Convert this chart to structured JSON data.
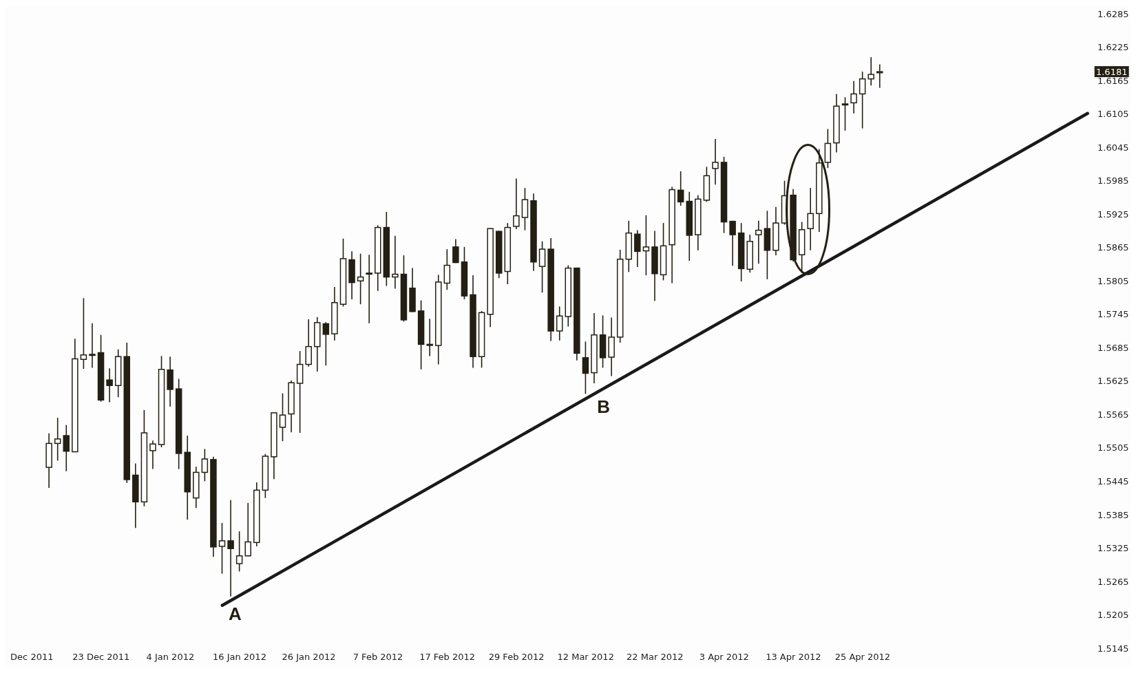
{
  "chart_data": {
    "type": "candlestick",
    "color": "#231f12",
    "categories": [
      "Dec 2011",
      null,
      null,
      null,
      null,
      null,
      null,
      null,
      "23 Dec 2011",
      null,
      null,
      null,
      null,
      null,
      null,
      null,
      "4 Jan 2012",
      null,
      null,
      null,
      null,
      null,
      null,
      null,
      "16 Jan 2012",
      null,
      null,
      null,
      null,
      null,
      null,
      null,
      "26 Jan 2012",
      null,
      null,
      null,
      null,
      null,
      null,
      null,
      "7 Feb 2012",
      null,
      null,
      null,
      null,
      null,
      null,
      null,
      "17 Feb 2012",
      null,
      null,
      null,
      null,
      null,
      null,
      null,
      "29 Feb 2012",
      null,
      null,
      null,
      null,
      null,
      null,
      null,
      "12 Mar 2012",
      null,
      null,
      null,
      null,
      null,
      null,
      null,
      "22 Mar 2012",
      null,
      null,
      null,
      null,
      null,
      null,
      null,
      "3 Apr 2012",
      null,
      null,
      null,
      null,
      null,
      null,
      null,
      "13 Apr 2012",
      null,
      null,
      null,
      null,
      null,
      null,
      null,
      "25 Apr 2012",
      null,
      null,
      null,
      null,
      null,
      null,
      null,
      null,
      null,
      null,
      null,
      null,
      null,
      null,
      null,
      null,
      null,
      null,
      null,
      null,
      null,
      null,
      null,
      null,
      null,
      null
    ],
    "ohlc": [
      null,
      null,
      [
        1.547,
        1.5531,
        1.5433,
        1.5513
      ],
      [
        1.5513,
        1.5559,
        1.5482,
        1.5521
      ],
      [
        1.5527,
        1.5546,
        1.5463,
        1.5499
      ],
      [
        1.5498,
        1.5701,
        1.5497,
        1.5665
      ],
      [
        1.5664,
        1.5774,
        1.5647,
        1.5672
      ],
      [
        1.5673,
        1.5729,
        1.5649,
        1.5672
      ],
      [
        1.5676,
        1.5708,
        1.5588,
        1.5591
      ],
      [
        1.5627,
        1.5648,
        1.5587,
        1.5617
      ],
      [
        1.5617,
        1.5682,
        1.5596,
        1.5669
      ],
      [
        1.5669,
        1.5694,
        1.5442,
        1.5448
      ],
      [
        1.5456,
        1.5477,
        1.5361,
        1.5408
      ],
      [
        1.5408,
        1.5573,
        1.54,
        1.5532
      ],
      [
        1.55,
        1.5518,
        1.5467,
        1.5512
      ],
      [
        1.5511,
        1.567,
        1.5506,
        1.5646
      ],
      [
        1.5645,
        1.5669,
        1.5579,
        1.561
      ],
      [
        1.5611,
        1.5629,
        1.5467,
        1.5495
      ],
      [
        1.5497,
        1.5527,
        1.5376,
        1.5426
      ],
      [
        1.5415,
        1.5471,
        1.5397,
        1.5461
      ],
      [
        1.5461,
        1.5503,
        1.5445,
        1.5485
      ],
      [
        1.5484,
        1.5489,
        1.5309,
        1.5327
      ],
      [
        1.5328,
        1.537,
        1.5279,
        1.5338
      ],
      [
        1.5338,
        1.5411,
        1.5238,
        1.5324
      ],
      [
        1.5297,
        1.5355,
        1.5283,
        1.5311
      ],
      [
        1.5311,
        1.5406,
        1.531,
        1.5336
      ],
      [
        1.5335,
        1.5443,
        1.5328,
        1.5429
      ],
      [
        1.5429,
        1.5494,
        1.5415,
        1.549
      ],
      [
        1.5489,
        1.5569,
        1.5449,
        1.5568
      ],
      [
        1.5542,
        1.5603,
        1.5517,
        1.5564
      ],
      [
        1.5566,
        1.5626,
        1.5533,
        1.5622
      ],
      [
        1.5621,
        1.5679,
        1.5532,
        1.5655
      ],
      [
        1.5655,
        1.5736,
        1.5651,
        1.5687
      ],
      [
        1.5687,
        1.574,
        1.5642,
        1.573
      ],
      [
        1.5728,
        1.5731,
        1.5653,
        1.5709
      ],
      [
        1.571,
        1.5794,
        1.5698,
        1.5766
      ],
      [
        1.5763,
        1.5881,
        1.5759,
        1.5845
      ],
      [
        1.5843,
        1.5858,
        1.5772,
        1.5802
      ],
      [
        1.5805,
        1.5854,
        1.5763,
        1.5812
      ],
      [
        1.5818,
        1.5852,
        1.5729,
        1.5819
      ],
      [
        1.5819,
        1.5905,
        1.5787,
        1.5901
      ],
      [
        1.5901,
        1.5929,
        1.5796,
        1.5812
      ],
      [
        1.5812,
        1.5886,
        1.5791,
        1.5817
      ],
      [
        1.5817,
        1.5851,
        1.5732,
        1.5735
      ],
      [
        1.5792,
        1.5828,
        1.5749,
        1.575
      ],
      [
        1.5751,
        1.577,
        1.5646,
        1.5691
      ],
      [
        1.569,
        1.5737,
        1.567,
        1.5691
      ],
      [
        1.5689,
        1.5816,
        1.5655,
        1.5803
      ],
      [
        1.5801,
        1.5862,
        1.5789,
        1.5833
      ],
      [
        1.5866,
        1.588,
        1.5837,
        1.5838
      ],
      [
        1.5839,
        1.5866,
        1.5772,
        1.5778
      ],
      [
        1.578,
        1.5815,
        1.5649,
        1.5669
      ],
      [
        1.5669,
        1.5751,
        1.5649,
        1.5748
      ],
      [
        1.5745,
        1.59,
        1.5722,
        1.5899
      ],
      [
        1.5894,
        1.5895,
        1.581,
        1.5819
      ],
      [
        1.5822,
        1.5909,
        1.5799,
        1.5901
      ],
      [
        1.5903,
        1.5989,
        1.5898,
        1.5922
      ],
      [
        1.5919,
        1.5972,
        1.5896,
        1.5951
      ],
      [
        1.5949,
        1.5962,
        1.5823,
        1.5839
      ],
      [
        1.5831,
        1.5876,
        1.5784,
        1.5862
      ],
      [
        1.5862,
        1.5882,
        1.5697,
        1.5715
      ],
      [
        1.5715,
        1.5759,
        1.5698,
        1.5742
      ],
      [
        1.5741,
        1.5833,
        1.5723,
        1.5828
      ],
      [
        1.5828,
        1.5829,
        1.5662,
        1.5675
      ],
      [
        1.5667,
        1.5696,
        1.5602,
        1.5639
      ],
      [
        1.564,
        1.5747,
        1.5621,
        1.5708
      ],
      [
        1.5708,
        1.5743,
        1.5649,
        1.5667
      ],
      [
        1.5668,
        1.5739,
        1.5634,
        1.5704
      ],
      [
        1.5704,
        1.5861,
        1.5694,
        1.5844
      ],
      [
        1.5844,
        1.5913,
        1.5821,
        1.5891
      ],
      [
        1.5889,
        1.5896,
        1.583,
        1.5858
      ],
      [
        1.5859,
        1.5923,
        1.5815,
        1.5866
      ],
      [
        1.5866,
        1.5895,
        1.5769,
        1.5818
      ],
      [
        1.5816,
        1.5909,
        1.5806,
        1.5868
      ],
      [
        1.587,
        1.5974,
        1.5801,
        1.5969
      ],
      [
        1.5968,
        1.6002,
        1.594,
        1.5947
      ],
      [
        1.5948,
        1.5965,
        1.5841,
        1.5887
      ],
      [
        1.5888,
        1.5959,
        1.586,
        1.5952
      ],
      [
        1.595,
        1.601,
        1.5947,
        1.5994
      ],
      [
        1.6007,
        1.606,
        1.5978,
        1.6018
      ],
      [
        1.6018,
        1.6028,
        1.5891,
        1.5911
      ],
      [
        1.5912,
        1.5913,
        1.5832,
        1.5888
      ],
      [
        1.5891,
        1.5909,
        1.5804,
        1.5827
      ],
      [
        1.5826,
        1.5888,
        1.582,
        1.5876
      ],
      [
        1.5888,
        1.5913,
        1.5836,
        1.5896
      ],
      [
        1.5899,
        1.5931,
        1.5808,
        1.586
      ],
      [
        1.586,
        1.5938,
        1.5851,
        1.5909
      ],
      [
        1.5909,
        1.5985,
        1.5906,
        1.5958
      ],
      [
        1.5959,
        1.597,
        1.584,
        1.5843
      ],
      [
        1.5852,
        1.5911,
        1.5819,
        1.5897
      ],
      [
        1.5899,
        1.5972,
        1.586,
        1.5926
      ],
      [
        1.5926,
        1.6042,
        1.5893,
        1.6017
      ],
      [
        1.6018,
        1.6078,
        1.6008,
        1.6052
      ],
      [
        1.6053,
        1.6141,
        1.6036,
        1.6119
      ],
      [
        1.6122,
        1.6135,
        1.6075,
        1.6123
      ],
      [
        1.6125,
        1.6164,
        1.6106,
        1.6141
      ],
      [
        1.6141,
        1.6181,
        1.6079,
        1.6168
      ],
      [
        1.6168,
        1.6207,
        1.6156,
        1.6176
      ],
      [
        1.6179,
        1.6194,
        1.6152,
        1.6181
      ],
      null,
      null,
      null,
      null,
      null,
      null,
      null,
      null,
      null,
      null,
      null,
      null,
      null,
      null,
      null,
      null,
      null,
      null,
      null,
      null,
      null,
      null,
      null,
      null
    ],
    "series": [
      {
        "type": "line",
        "color": "#1a1a1a",
        "values": [
          null,
          null,
          null,
          null,
          null,
          null,
          null,
          null,
          null,
          null,
          null,
          null,
          null,
          null,
          null,
          null,
          null,
          null,
          null,
          null,
          null,
          null,
          1.5222,
          null,
          null,
          null,
          null,
          null,
          null,
          null,
          null,
          null,
          null,
          null,
          null,
          null,
          null,
          null,
          null,
          null,
          null,
          null,
          null,
          null,
          null,
          null,
          null,
          null,
          null,
          null,
          null,
          null,
          null,
          null,
          null,
          null,
          null,
          null,
          null,
          null,
          null,
          null,
          null,
          null,
          null,
          null,
          null,
          null,
          null,
          null,
          null,
          null,
          null,
          null,
          null,
          null,
          null,
          null,
          null,
          null,
          null,
          null,
          null,
          null,
          null,
          null,
          null,
          null,
          null,
          null,
          null,
          null,
          null,
          null,
          null,
          null,
          null,
          null,
          null,
          null,
          null,
          null,
          null,
          null,
          null,
          null,
          null,
          null,
          null,
          null,
          null,
          null,
          null,
          null,
          null,
          null,
          null,
          null,
          null,
          null,
          null,
          null,
          1.6106
        ]
      }
    ],
    "ylim": [
      1.5145,
      1.6285
    ],
    "yticks": [
      1.5145,
      1.5205,
      1.5265,
      1.5325,
      1.5385,
      1.5445,
      1.5505,
      1.5565,
      1.5625,
      1.5685,
      1.5745,
      1.5805,
      1.5865,
      1.5925,
      1.5985,
      1.6045,
      1.6105,
      1.6165,
      1.6225,
      1.6285
    ],
    "annotations": [
      "A",
      "B",
      "1.6181"
    ]
  }
}
